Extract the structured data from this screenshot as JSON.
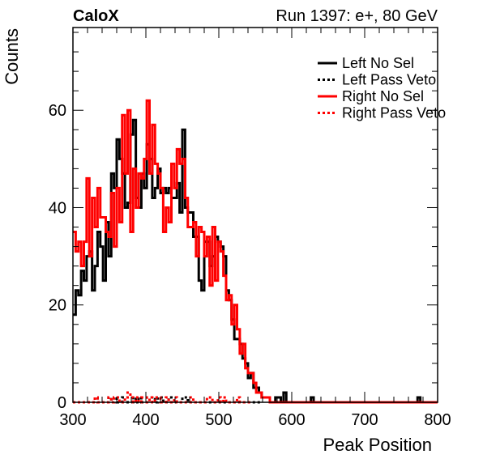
{
  "chart_data": {
    "type": "line",
    "title": "CaloX",
    "subtitle": "Run 1397: e+, 80 GeV",
    "xlabel": "Peak Position",
    "ylabel": "Counts",
    "xlim": [
      300,
      800
    ],
    "ylim": [
      0,
      77
    ],
    "grid": false,
    "legend_position": "top-right",
    "x_ticks": [
      300,
      400,
      500,
      600,
      700,
      800
    ],
    "y_ticks": [
      0,
      20,
      40,
      60
    ],
    "bin_width": 3.75,
    "series": [
      {
        "name": "Left No Sel",
        "color": "#000000",
        "dash": "solid",
        "x": [
          300.0,
          303.75,
          307.5,
          311.25,
          315.0,
          318.75,
          322.5,
          326.25,
          330.0,
          333.75,
          337.5,
          341.25,
          345.0,
          348.75,
          352.5,
          356.25,
          360.0,
          363.75,
          367.5,
          371.25,
          375.0,
          378.75,
          382.5,
          386.25,
          390.0,
          393.75,
          397.5,
          401.25,
          405.0,
          408.75,
          412.5,
          416.25,
          420.0,
          423.75,
          427.5,
          431.25,
          435.0,
          438.75,
          442.5,
          446.25,
          450.0,
          453.75,
          457.5,
          461.25,
          465.0,
          468.75,
          472.5,
          476.25,
          480.0,
          483.75,
          487.5,
          491.25,
          495.0,
          498.75,
          502.5,
          506.25,
          510.0,
          513.75,
          517.5,
          521.25,
          525.0,
          528.75,
          532.5,
          536.25,
          540.0,
          543.75,
          547.5,
          551.25,
          555.0,
          558.75,
          562.5,
          566.25,
          570.0,
          573.75,
          577.5,
          581.25,
          585.0,
          588.75,
          592.5,
          596.25,
          600.0,
          603.75,
          607.5,
          611.25,
          615.0,
          618.75,
          622.5,
          626.25,
          630.0,
          633.75,
          637.5,
          641.25,
          645.0,
          648.75,
          652.5,
          656.25,
          660.0,
          663.75,
          667.5,
          671.25,
          675.0,
          678.75,
          682.5,
          686.25,
          690.0,
          693.75,
          697.5,
          701.25,
          705.0,
          708.75,
          712.5,
          716.25,
          720.0,
          723.75,
          727.5,
          731.25,
          735.0,
          738.75,
          742.5,
          746.25,
          750.0,
          753.75,
          757.5,
          761.25,
          765.0,
          768.75,
          772.5,
          776.25,
          780.0,
          783.75,
          787.5,
          791.25,
          795.0,
          798.75
        ],
        "y": [
          18,
          23,
          22,
          27,
          25,
          30,
          31,
          23,
          28,
          35,
          32,
          25,
          37,
          30,
          47,
          44,
          54,
          50,
          47,
          40,
          41,
          55,
          58,
          42,
          40,
          47,
          44,
          53,
          50,
          42,
          44,
          48,
          43,
          44,
          43,
          44,
          42,
          42,
          45,
          39,
          56,
          40,
          39,
          39,
          34,
          34,
          25,
          23,
          33,
          33,
          28,
          30,
          34,
          33,
          32,
          30,
          23,
          21,
          17,
          13,
          13,
          12,
          9,
          8,
          5,
          6,
          3,
          3,
          2,
          1,
          1,
          1,
          0,
          0,
          1,
          1,
          0,
          2,
          0,
          0,
          0,
          0,
          0,
          0,
          0,
          0,
          0,
          1,
          0,
          0,
          0,
          0,
          0,
          0,
          0,
          0,
          0,
          0,
          0,
          0,
          0,
          0,
          0,
          0,
          0,
          0,
          0,
          0,
          0,
          0,
          0,
          0,
          0,
          0,
          0,
          0,
          0,
          0,
          0,
          0,
          0,
          0,
          0,
          0,
          0,
          0,
          1,
          0,
          0,
          0,
          0,
          0,
          0,
          0
        ]
      },
      {
        "name": "Left Pass Veto",
        "color": "#000000",
        "dash": "dotted",
        "x": [
          300.0,
          303.75,
          307.5,
          311.25,
          315.0,
          318.75,
          322.5,
          326.25,
          330.0,
          333.75,
          337.5,
          341.25,
          345.0,
          348.75,
          352.5,
          356.25,
          360.0,
          363.75,
          367.5,
          371.25,
          375.0,
          378.75,
          382.5,
          386.25,
          390.0,
          393.75,
          397.5,
          401.25,
          405.0,
          408.75,
          412.5,
          416.25,
          420.0,
          423.75,
          427.5,
          431.25,
          435.0,
          438.75,
          442.5,
          446.25,
          450.0,
          453.75,
          457.5,
          461.25,
          465.0,
          468.75,
          472.5,
          476.25,
          480.0,
          483.75,
          487.5,
          491.25,
          495.0,
          498.75,
          502.5,
          506.25,
          510.0,
          513.75,
          517.5,
          521.25,
          525.0,
          528.75,
          532.5,
          536.25,
          540.0,
          543.75,
          547.5,
          551.25,
          555.0
        ],
        "y": [
          0,
          0,
          0,
          0,
          0,
          0,
          0,
          0,
          1,
          0,
          0,
          0,
          0,
          1,
          0,
          1,
          0,
          0,
          1,
          1,
          0,
          0,
          1,
          0,
          1,
          0,
          0,
          0,
          1,
          1,
          0,
          1,
          1,
          0,
          0,
          1,
          0,
          0,
          0,
          0,
          1,
          1,
          0,
          0,
          0,
          0,
          0,
          0,
          0,
          0,
          0,
          0,
          0,
          0,
          0,
          0,
          0,
          0,
          0,
          0,
          0,
          0,
          0,
          0,
          0,
          0,
          0,
          0,
          0
        ]
      },
      {
        "name": "Right No Sel",
        "color": "#ff0000",
        "dash": "solid",
        "x": [
          300.0,
          303.75,
          307.5,
          311.25,
          315.0,
          318.75,
          322.5,
          326.25,
          330.0,
          333.75,
          337.5,
          341.25,
          345.0,
          348.75,
          352.5,
          356.25,
          360.0,
          363.75,
          367.5,
          371.25,
          375.0,
          378.75,
          382.5,
          386.25,
          390.0,
          393.75,
          397.5,
          401.25,
          405.0,
          408.75,
          412.5,
          416.25,
          420.0,
          423.75,
          427.5,
          431.25,
          435.0,
          438.75,
          442.5,
          446.25,
          450.0,
          453.75,
          457.5,
          461.25,
          465.0,
          468.75,
          472.5,
          476.25,
          480.0,
          483.75,
          487.5,
          491.25,
          495.0,
          498.75,
          502.5,
          506.25,
          510.0,
          513.75,
          517.5,
          521.25,
          525.0,
          528.75,
          532.5,
          536.25,
          540.0,
          543.75,
          547.5,
          551.25,
          555.0,
          558.75,
          562.5,
          566.25,
          570.0,
          573.75,
          577.5,
          581.25,
          585.0,
          588.75,
          592.5,
          596.25,
          600.0,
          603.75,
          607.5,
          611.25,
          615.0,
          618.75,
          622.5,
          626.25,
          630.0,
          633.75,
          637.5,
          641.25,
          645.0,
          648.75,
          652.5,
          656.25,
          660.0,
          663.75,
          667.5,
          671.25,
          675.0,
          678.75,
          682.5,
          686.25,
          690.0,
          693.75,
          697.5,
          701.25,
          705.0,
          708.75,
          712.5,
          716.25,
          720.0,
          723.75,
          727.5,
          731.25,
          735.0,
          738.75,
          742.5,
          746.25,
          750.0,
          753.75,
          757.5,
          761.25,
          765.0,
          768.75,
          772.5,
          776.25,
          780.0,
          783.75,
          787.5,
          791.25,
          795.0,
          798.75
        ],
        "y": [
          35,
          31,
          33,
          28,
          33,
          46,
          30,
          42,
          36,
          44,
          38,
          38,
          35,
          34,
          43,
          32,
          44,
          37,
          59,
          47,
          60,
          35,
          48,
          40,
          47,
          46,
          50,
          62,
          47,
          57,
          49,
          47,
          44,
          35,
          40,
          37,
          49,
          44,
          52,
          49,
          50,
          42,
          36,
          36,
          37,
          30,
          36,
          35,
          30,
          34,
          24,
          36,
          25,
          33,
          31,
          26,
          21,
          22,
          16,
          20,
          15,
          10,
          12,
          7,
          6,
          6,
          4,
          2,
          2,
          1,
          1,
          1,
          0,
          0,
          0,
          0,
          0,
          0,
          0,
          0,
          0,
          0,
          0,
          0,
          0,
          0,
          0,
          0,
          0,
          0,
          0,
          0,
          0,
          0,
          0,
          0,
          0,
          0,
          0,
          0,
          0,
          0,
          0,
          0,
          0,
          0,
          0,
          0,
          0,
          0,
          0,
          0,
          0,
          0,
          0,
          0,
          0,
          0,
          0,
          0,
          0,
          0,
          0,
          0,
          0,
          0,
          0,
          0,
          0,
          0,
          0,
          0,
          0,
          0
        ]
      },
      {
        "name": "Right Pass Veto",
        "color": "#ff0000",
        "dash": "dotted",
        "x": [
          300.0,
          303.75,
          307.5,
          311.25,
          315.0,
          318.75,
          322.5,
          326.25,
          330.0,
          333.75,
          337.5,
          341.25,
          345.0,
          348.75,
          352.5,
          356.25,
          360.0,
          363.75,
          367.5,
          371.25,
          375.0,
          378.75,
          382.5,
          386.25,
          390.0,
          393.75,
          397.5,
          401.25,
          405.0,
          408.75,
          412.5,
          416.25,
          420.0,
          423.75,
          427.5,
          431.25,
          435.0,
          438.75,
          442.5,
          446.25,
          450.0,
          453.75,
          457.5,
          461.25,
          465.0,
          468.75,
          472.5,
          476.25,
          480.0,
          483.75,
          487.5,
          491.25,
          495.0,
          498.75,
          502.5,
          506.25,
          510.0,
          513.75,
          517.5,
          521.25,
          525.0,
          528.75,
          532.5,
          536.25,
          540.0
        ],
        "y": [
          0,
          0,
          0,
          0,
          0,
          0,
          0,
          0,
          1,
          0,
          0,
          0,
          0,
          1,
          0,
          1,
          1,
          0,
          0,
          1,
          2,
          1,
          0,
          1,
          0,
          1,
          1,
          0,
          1,
          0,
          1,
          1,
          0,
          0,
          1,
          0,
          0,
          1,
          0,
          0,
          0,
          0,
          0,
          1,
          0,
          0,
          0,
          0,
          0,
          1,
          1,
          0,
          0,
          1,
          0,
          1,
          0,
          0,
          0,
          0,
          1,
          0,
          0,
          0,
          0
        ]
      }
    ]
  }
}
